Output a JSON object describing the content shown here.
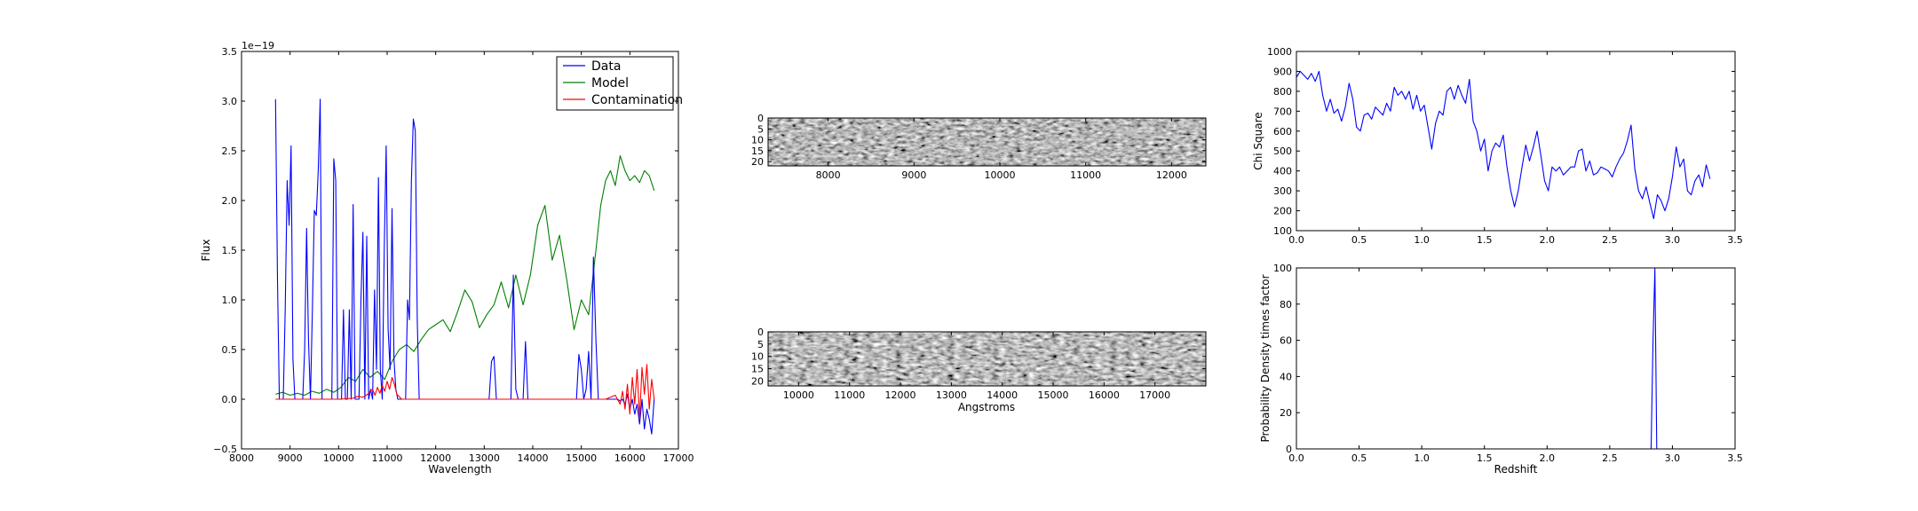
{
  "chart_data": [
    {
      "type": "line",
      "xlabel": "Wavelength",
      "ylabel": "Flux",
      "offset_text": "1e−19",
      "xlim": [
        8000,
        17000
      ],
      "ylim": [
        -0.5,
        3.5
      ],
      "xticks": [
        "8000",
        "9000",
        "10000",
        "11000",
        "12000",
        "13000",
        "14000",
        "15000",
        "16000",
        "17000"
      ],
      "yticks": [
        "−0.5",
        "0.0",
        "0.5",
        "1.0",
        "1.5",
        "2.0",
        "2.5",
        "3.0",
        "3.5"
      ],
      "legend_position": "upper-right",
      "series": [
        {
          "name": "Data",
          "color": "#0000ff",
          "x": [
            8700,
            8740,
            8780,
            8820,
            8860,
            8900,
            8940,
            8980,
            9020,
            9060,
            9100,
            9140,
            9180,
            9220,
            9260,
            9300,
            9340,
            9380,
            9420,
            9460,
            9500,
            9540,
            9580,
            9620,
            9660,
            9700,
            9740,
            9780,
            9820,
            9860,
            9900,
            9940,
            9980,
            10020,
            10060,
            10100,
            10140,
            10180,
            10220,
            10260,
            10300,
            10340,
            10380,
            10420,
            10460,
            10500,
            10540,
            10580,
            10620,
            10660,
            10700,
            10740,
            10780,
            10820,
            10860,
            10900,
            10940,
            10980,
            11020,
            11060,
            11100,
            11140,
            11180,
            11220,
            11260,
            11300,
            11340,
            11380,
            11420,
            11460,
            11500,
            11540,
            11580,
            11620,
            11660,
            11700,
            11740,
            11780,
            11820,
            11900,
            12200,
            12600,
            13000,
            13100,
            13150,
            13200,
            13250,
            13300,
            13350,
            13450,
            13550,
            13600,
            13650,
            13700,
            13750,
            13800,
            13850,
            13900,
            13950,
            14000,
            14200,
            14500,
            14800,
            14900,
            14950,
            15000,
            15050,
            15100,
            15150,
            15200,
            15250,
            15300,
            15350,
            15400,
            15450,
            15500,
            15550,
            15600,
            15650,
            15700,
            15750,
            15800,
            15850,
            15900,
            15950,
            16000,
            16050,
            16100,
            16150,
            16200,
            16250,
            16300,
            16350,
            16400,
            16450,
            16500
          ],
          "y": [
            3.02,
            1.2,
            0.0,
            0.0,
            0.0,
            0.9,
            2.2,
            1.75,
            2.55,
            0.4,
            0.0,
            0.0,
            0.0,
            0.0,
            0.0,
            0.5,
            1.72,
            0.6,
            0.0,
            0.9,
            1.9,
            1.85,
            2.3,
            3.02,
            0.0,
            0.0,
            0.0,
            0.0,
            0.0,
            0.0,
            2.42,
            2.2,
            0.0,
            0.0,
            0.0,
            0.9,
            0.0,
            0.0,
            0.9,
            0.0,
            1.96,
            0.0,
            0.0,
            0.0,
            1.0,
            1.68,
            0.0,
            1.64,
            0.0,
            0.1,
            0.0,
            1.1,
            0.3,
            2.23,
            0.3,
            0.0,
            1.5,
            2.55,
            0.7,
            0.3,
            1.92,
            0.4,
            0.1,
            0.0,
            0.0,
            0.0,
            0.0,
            0.0,
            1.0,
            0.8,
            2.2,
            2.82,
            2.7,
            0.8,
            0.0,
            0.0,
            0.0,
            0.0,
            0.0,
            0.0,
            0.0,
            0.0,
            0.0,
            0.0,
            0.38,
            0.43,
            0.0,
            0.0,
            0.0,
            0.0,
            0.0,
            1.25,
            0.1,
            0.0,
            0.0,
            0.0,
            0.58,
            0.0,
            0.0,
            0.0,
            0.0,
            0.0,
            0.0,
            0.0,
            0.45,
            0.3,
            0.0,
            0.1,
            0.48,
            0.0,
            1.43,
            0.6,
            0.0,
            0.0,
            0.0,
            0.0,
            0.0,
            0.0,
            0.0,
            0.0,
            0.0,
            -0.02,
            0.0,
            -0.05,
            0.05,
            -0.1,
            0.0,
            -0.15,
            -0.05,
            -0.25,
            0.0,
            -0.3,
            -0.1,
            -0.2,
            -0.35,
            0.0
          ]
        },
        {
          "name": "Model",
          "color": "#008000",
          "x": [
            8700,
            8850,
            9000,
            9150,
            9300,
            9450,
            9600,
            9750,
            9900,
            10050,
            10200,
            10350,
            10500,
            10650,
            10800,
            10950,
            11100,
            11250,
            11400,
            11550,
            11700,
            11850,
            12000,
            12150,
            12300,
            12450,
            12600,
            12750,
            12900,
            13050,
            13200,
            13350,
            13500,
            13650,
            13800,
            13950,
            14100,
            14250,
            14400,
            14550,
            14700,
            14850,
            15000,
            15150,
            15300,
            15400,
            15500,
            15600,
            15700,
            15800,
            15900,
            16000,
            16100,
            16200,
            16300,
            16400,
            16500
          ],
          "y": [
            0.05,
            0.07,
            0.04,
            0.06,
            0.04,
            0.08,
            0.06,
            0.1,
            0.07,
            0.12,
            0.22,
            0.18,
            0.3,
            0.22,
            0.28,
            0.2,
            0.38,
            0.5,
            0.55,
            0.48,
            0.6,
            0.7,
            0.75,
            0.8,
            0.68,
            0.88,
            1.1,
            0.98,
            0.72,
            0.85,
            0.95,
            1.18,
            0.92,
            1.25,
            0.95,
            1.25,
            1.75,
            1.95,
            1.4,
            1.65,
            1.2,
            0.7,
            1.0,
            0.85,
            1.5,
            1.95,
            2.2,
            2.3,
            2.15,
            2.45,
            2.3,
            2.2,
            2.25,
            2.18,
            2.3,
            2.25,
            2.1
          ]
        },
        {
          "name": "Contamination",
          "color": "#ff0000",
          "x": [
            8700,
            9500,
            10000,
            10300,
            10400,
            10500,
            10600,
            10650,
            10700,
            10750,
            10800,
            10850,
            10900,
            10950,
            11000,
            11050,
            11100,
            11150,
            11200,
            11300,
            12000,
            14000,
            15000,
            15500,
            15600,
            15700,
            15800,
            15850,
            15900,
            15950,
            16000,
            16050,
            16100,
            16150,
            16200,
            16250,
            16300,
            16350,
            16400,
            16450,
            16500
          ],
          "y": [
            0.0,
            0.0,
            0.0,
            0.01,
            0.03,
            0.02,
            0.05,
            0.08,
            0.1,
            0.04,
            0.12,
            0.06,
            0.14,
            0.08,
            0.18,
            0.1,
            0.22,
            0.15,
            0.05,
            0.0,
            0.0,
            0.0,
            0.0,
            0.0,
            0.02,
            0.04,
            -0.05,
            0.08,
            -0.1,
            0.15,
            -0.15,
            0.22,
            -0.05,
            0.3,
            -0.2,
            0.32,
            0.05,
            0.35,
            -0.1,
            0.2,
            0.0
          ]
        }
      ]
    },
    {
      "type": "heatmap",
      "xticks": [
        "8000",
        "9000",
        "10000",
        "11000",
        "12000"
      ],
      "yticks": [
        "0",
        "5",
        "10",
        "15",
        "20"
      ],
      "x_range": [
        7300,
        12400
      ],
      "y_range": [
        0,
        22
      ]
    },
    {
      "type": "heatmap",
      "xlabel": "Angstroms",
      "xticks": [
        "10000",
        "11000",
        "12000",
        "13000",
        "14000",
        "15000",
        "16000",
        "17000"
      ],
      "yticks": [
        "0",
        "5",
        "10",
        "15",
        "20"
      ],
      "x_range": [
        9400,
        18000
      ],
      "y_range": [
        0,
        22
      ]
    },
    {
      "type": "line",
      "ylabel": "Chi Square",
      "xlim": [
        0.0,
        3.5
      ],
      "ylim": [
        100,
        1000
      ],
      "xticks": [
        "0.0",
        "0.5",
        "1.0",
        "1.5",
        "2.0",
        "2.5",
        "3.0",
        "3.5"
      ],
      "yticks": [
        "100",
        "200",
        "300",
        "400",
        "500",
        "600",
        "700",
        "800",
        "900",
        "1000"
      ],
      "series": [
        {
          "color": "#0000ff",
          "x": [
            0.0,
            0.03,
            0.06,
            0.09,
            0.12,
            0.15,
            0.18,
            0.21,
            0.24,
            0.27,
            0.3,
            0.33,
            0.36,
            0.39,
            0.42,
            0.45,
            0.48,
            0.51,
            0.54,
            0.57,
            0.6,
            0.63,
            0.66,
            0.69,
            0.72,
            0.75,
            0.78,
            0.81,
            0.84,
            0.87,
            0.9,
            0.93,
            0.96,
            0.99,
            1.02,
            1.05,
            1.08,
            1.11,
            1.14,
            1.17,
            1.2,
            1.23,
            1.26,
            1.29,
            1.32,
            1.35,
            1.38,
            1.41,
            1.44,
            1.47,
            1.5,
            1.53,
            1.56,
            1.59,
            1.62,
            1.65,
            1.68,
            1.71,
            1.74,
            1.77,
            1.8,
            1.83,
            1.86,
            1.89,
            1.92,
            1.95,
            1.98,
            2.01,
            2.04,
            2.07,
            2.1,
            2.13,
            2.16,
            2.19,
            2.22,
            2.25,
            2.28,
            2.31,
            2.34,
            2.37,
            2.4,
            2.43,
            2.46,
            2.49,
            2.52,
            2.55,
            2.58,
            2.61,
            2.64,
            2.67,
            2.7,
            2.73,
            2.76,
            2.79,
            2.82,
            2.85,
            2.88,
            2.91,
            2.94,
            2.97,
            3.0,
            3.03,
            3.06,
            3.09,
            3.12,
            3.15,
            3.18,
            3.21,
            3.24,
            3.27,
            3.3
          ],
          "y": [
            870,
            900,
            880,
            860,
            890,
            850,
            900,
            780,
            700,
            760,
            690,
            710,
            650,
            720,
            840,
            760,
            620,
            600,
            680,
            690,
            660,
            720,
            700,
            680,
            740,
            700,
            820,
            780,
            800,
            760,
            800,
            710,
            780,
            700,
            730,
            620,
            510,
            640,
            700,
            680,
            800,
            820,
            760,
            830,
            780,
            740,
            860,
            650,
            600,
            500,
            560,
            400,
            500,
            540,
            520,
            580,
            420,
            300,
            220,
            300,
            420,
            530,
            450,
            520,
            600,
            480,
            350,
            300,
            420,
            400,
            420,
            380,
            400,
            420,
            420,
            500,
            510,
            400,
            450,
            380,
            390,
            420,
            410,
            400,
            370,
            420,
            460,
            490,
            550,
            630,
            410,
            300,
            260,
            320,
            240,
            160,
            280,
            250,
            200,
            260,
            370,
            520,
            420,
            460,
            300,
            280,
            350,
            380,
            320,
            430,
            360
          ]
        }
      ]
    },
    {
      "type": "line",
      "xlabel": "Redshift",
      "ylabel": "Probability Density times factor",
      "xlim": [
        0.0,
        3.5
      ],
      "ylim": [
        0,
        100
      ],
      "xticks": [
        "0.0",
        "0.5",
        "1.0",
        "1.5",
        "2.0",
        "2.5",
        "3.0",
        "3.5"
      ],
      "yticks": [
        "0",
        "20",
        "40",
        "60",
        "80",
        "100"
      ],
      "series": [
        {
          "color": "#0000ff",
          "x": [
            0.0,
            2.8,
            2.83,
            2.845,
            2.86,
            2.875,
            2.9,
            3.3
          ],
          "y": [
            0,
            0,
            0,
            60,
            100,
            0,
            0,
            0
          ]
        }
      ]
    }
  ]
}
